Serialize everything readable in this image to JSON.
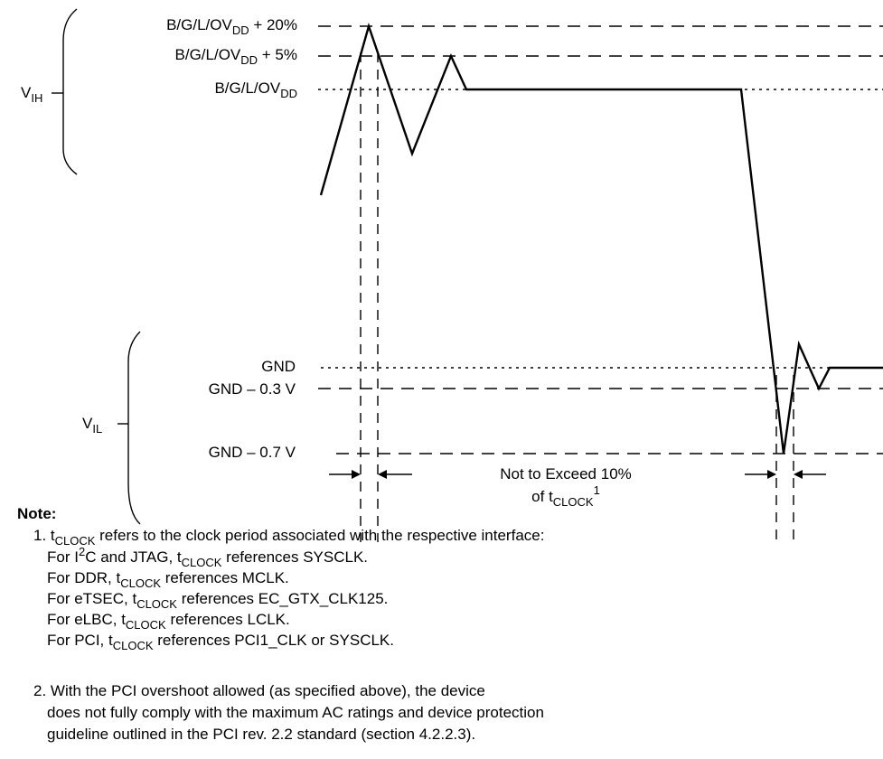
{
  "levels": {
    "vdd_plus20": {
      "base": "B/G/L/OV",
      "sub": "DD",
      "suffix": " + 20%"
    },
    "vdd_plus5": {
      "base": "B/G/L/OV",
      "sub": "DD",
      "suffix": " + 5%"
    },
    "vdd": {
      "base": "B/G/L/OV",
      "sub": "DD",
      "suffix": ""
    },
    "gnd": "GND",
    "gnd_minus03": "GND – 0.3 V",
    "gnd_minus07": "GND – 0.7 V"
  },
  "ranges": {
    "vih": {
      "base": "V",
      "sub": "IH"
    },
    "vil": {
      "base": "V",
      "sub": "IL"
    }
  },
  "annotation": {
    "line1": "Not to Exceed 10%",
    "line2_pre": "of t",
    "line2_sub": "CLOCK",
    "line2_sup": "1"
  },
  "notes": {
    "title": "Note:",
    "note1": {
      "prefix": "1. t",
      "sub": "CLOCK",
      "rest": " refers to the clock period associated with the respective interface:"
    },
    "note1_items": [
      {
        "pre": "For I",
        "sup": "2",
        "mid": "C and JTAG, t",
        "sub": "CLOCK",
        "post": " references SYSCLK."
      },
      {
        "pre": "For DDR, t",
        "sup": "",
        "mid": "",
        "sub": "CLOCK",
        "post": " references MCLK."
      },
      {
        "pre": "For eTSEC, t",
        "sup": "",
        "mid": "",
        "sub": "CLOCK",
        "post": " references EC_GTX_CLK125."
      },
      {
        "pre": "For eLBC, t",
        "sup": "",
        "mid": "",
        "sub": "CLOCK",
        "post": " references LCLK."
      },
      {
        "pre": "For PCI, t",
        "sup": "",
        "mid": "",
        "sub": "CLOCK",
        "post": " references PCI1_CLK or SYSCLK."
      }
    ],
    "note2_lines": [
      "2. With the PCI overshoot allowed (as specified above), the device",
      "does not fully comply with the maximum AC ratings and device protection",
      "guideline outlined in the PCI rev. 2.2 standard (section 4.2.2.3)."
    ]
  }
}
